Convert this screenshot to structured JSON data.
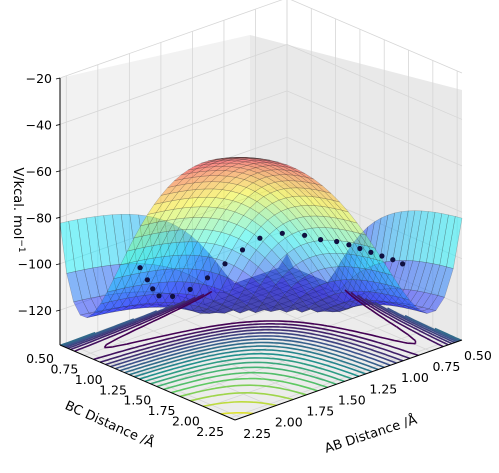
{
  "chart_data": {
    "type": "surface3d",
    "zlabel": "V/kcal. mol",
    "zlabel_exp": "−1",
    "xlabel": "BC Distance /Å",
    "ylabel": "AB Distance /Å",
    "z_ticks": [
      "−20",
      "−40",
      "−60",
      "−80",
      "−100",
      "−120"
    ],
    "z_tick_values": [
      -20,
      -40,
      -60,
      -80,
      -100,
      -120
    ],
    "bc_ticks": [
      "0.50",
      "0.75",
      "1.00",
      "1.25",
      "1.50",
      "1.75",
      "2.00",
      "2.25"
    ],
    "bc_tick_values": [
      0.5,
      0.75,
      1.0,
      1.25,
      1.5,
      1.75,
      2.0,
      2.25
    ],
    "ab_ticks": [
      "2.25",
      "2.00",
      "1.75",
      "1.50",
      "1.25",
      "1.00",
      "0.75",
      "0.50"
    ],
    "ab_tick_values": [
      2.25,
      2.0,
      1.75,
      1.5,
      1.25,
      1.0,
      0.75,
      0.5
    ],
    "zlim": [
      -135,
      -20
    ],
    "xlim": [
      0.5,
      2.3
    ],
    "ylim": [
      0.5,
      2.3
    ],
    "grid": true,
    "colormap": "jet",
    "contour_colormap": "viridis",
    "trajectory_color": "#101040",
    "trajectory": {
      "bc": [
        2.0,
        1.9,
        1.8,
        1.7,
        1.6,
        1.5,
        1.4,
        1.3,
        1.2,
        1.1,
        1.0,
        0.95,
        0.9,
        0.85,
        0.8,
        0.75,
        0.74,
        0.74,
        0.75,
        0.74
      ],
      "ab": [
        0.74,
        0.74,
        0.75,
        0.76,
        0.77,
        0.78,
        0.8,
        0.85,
        0.9,
        1.0,
        1.1,
        1.2,
        1.3,
        1.4,
        1.5,
        1.6,
        1.7,
        1.75,
        1.8,
        1.85
      ],
      "v": [
        -103,
        -103,
        -103,
        -103,
        -103,
        -103,
        -103,
        -103,
        -102,
        -101,
        -103,
        -107,
        -112,
        -117,
        -121,
        -123,
        -121,
        -117,
        -112,
        -106
      ]
    }
  }
}
